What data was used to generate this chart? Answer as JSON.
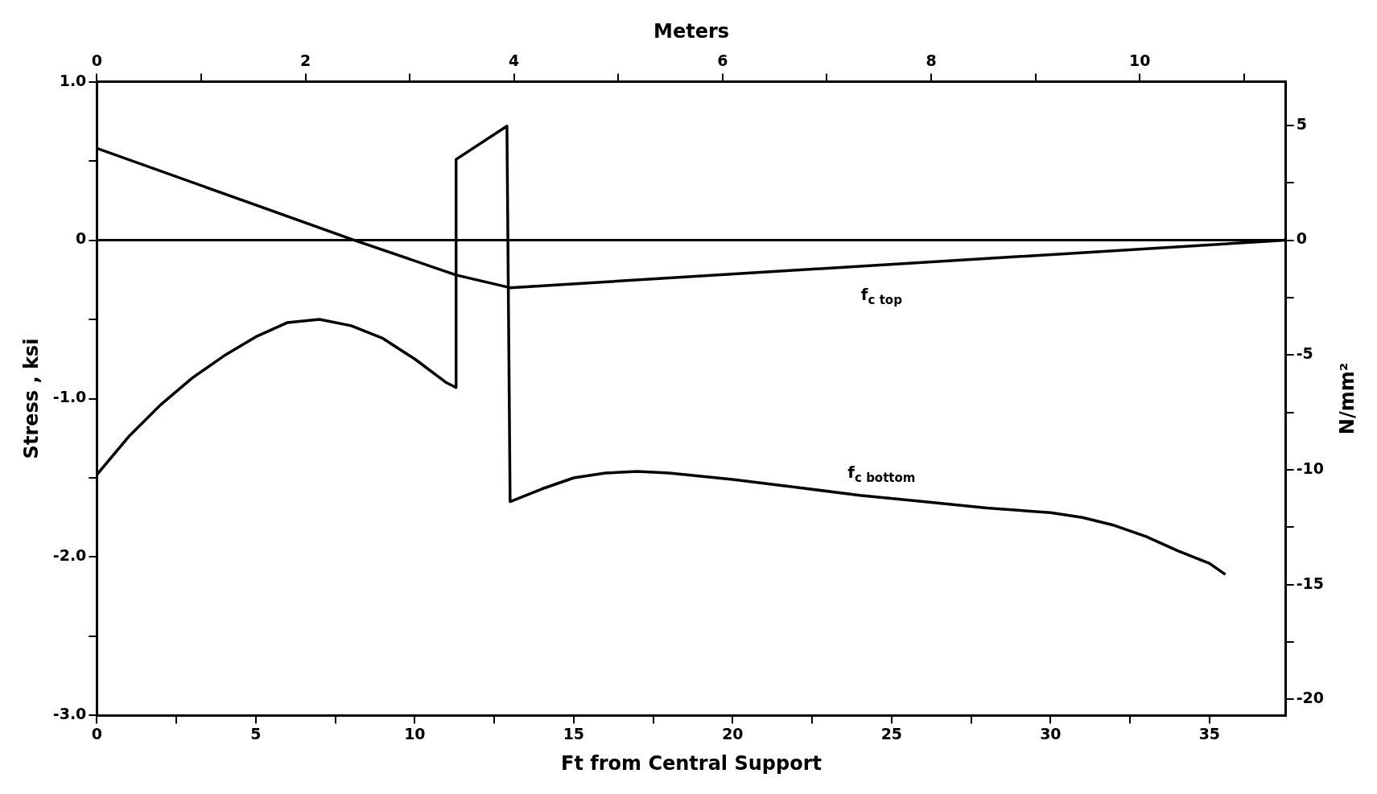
{
  "chart_data": {
    "type": "line",
    "xlabel": "Ft from Central Support",
    "ylabel": "Stress , ksi",
    "x2label": "Meters",
    "y2label": "N/mm²",
    "xlim": [
      0,
      37.4
    ],
    "xticks": [
      0,
      {
        "value": 2.5,
        "label": null
      },
      5,
      {
        "value": 7.5,
        "label": null
      },
      10,
      {
        "value": 12.5,
        "label": null
      },
      15,
      {
        "value": 17.5,
        "label": null
      },
      20,
      {
        "value": 22.5,
        "label": null
      },
      25,
      {
        "value": 27.5,
        "label": null
      },
      30,
      {
        "value": 32.5,
        "label": null
      },
      35
    ],
    "x2lim": [
      0,
      11.4
    ],
    "x2ticks": [
      0,
      {
        "value": 1,
        "label": null
      },
      2,
      {
        "value": 3,
        "label": null
      },
      4,
      {
        "value": 5,
        "label": null
      },
      6,
      {
        "value": 7,
        "label": null
      },
      8,
      {
        "value": 9,
        "label": null
      },
      10,
      {
        "value": 11,
        "label": null
      }
    ],
    "ylim": [
      -3,
      1
    ],
    "yticks": [
      {
        "value": -3,
        "label": "-3.0"
      },
      {
        "value": -2.5,
        "label": null
      },
      {
        "value": -2,
        "label": "-2.0"
      },
      {
        "value": -1.5,
        "label": null
      },
      {
        "value": -1,
        "label": "-1.0"
      },
      {
        "value": -0.5,
        "label": null
      },
      0,
      {
        "value": 0.5,
        "label": null
      },
      {
        "value": 1,
        "label": "1.0"
      }
    ],
    "y2lim": [
      -20.7,
      6.9
    ],
    "y2ticks": [
      -20,
      {
        "value": -17.5,
        "label": null
      },
      -15,
      {
        "value": -12.5,
        "label": null
      },
      -10,
      {
        "value": -7.5,
        "label": null
      },
      -5,
      {
        "value": -2.5,
        "label": null
      },
      0,
      {
        "value": 2.5,
        "label": null
      },
      5
    ],
    "grid": false,
    "legend": false,
    "marker": "none",
    "line_style": "solid",
    "ref_lines": [
      {
        "axis": "y",
        "value": 0,
        "color": "#000000"
      }
    ],
    "series": [
      {
        "name": "f$_{c top}$",
        "color": "#000000",
        "x": [
          0,
          8.1,
          11.3,
          13.0,
          37.4
        ],
        "values": [
          0.58,
          0,
          -0.22,
          -0.3,
          0
        ]
      },
      {
        "name": "f$_{c bottom}$",
        "color": "#000000",
        "x": [
          0,
          1,
          2,
          3,
          4,
          5,
          6,
          7,
          8,
          9,
          10,
          11,
          11.3,
          11.3,
          12.9,
          13.0,
          14,
          15,
          16,
          17,
          18,
          20,
          22,
          24,
          26,
          28,
          30,
          31,
          32,
          33,
          34,
          35,
          35.5
        ],
        "values": [
          -1.48,
          -1.24,
          -1.04,
          -0.87,
          -0.73,
          -0.61,
          -0.52,
          -0.5,
          -0.54,
          -0.62,
          -0.75,
          -0.9,
          -0.93,
          0.51,
          0.72,
          -1.65,
          -1.57,
          -1.5,
          -1.47,
          -1.46,
          -1.47,
          -1.51,
          -1.56,
          -1.61,
          -1.65,
          -1.69,
          -1.72,
          -1.75,
          -1.8,
          -1.87,
          -1.96,
          -2.04,
          -2.11
        ]
      }
    ]
  }
}
